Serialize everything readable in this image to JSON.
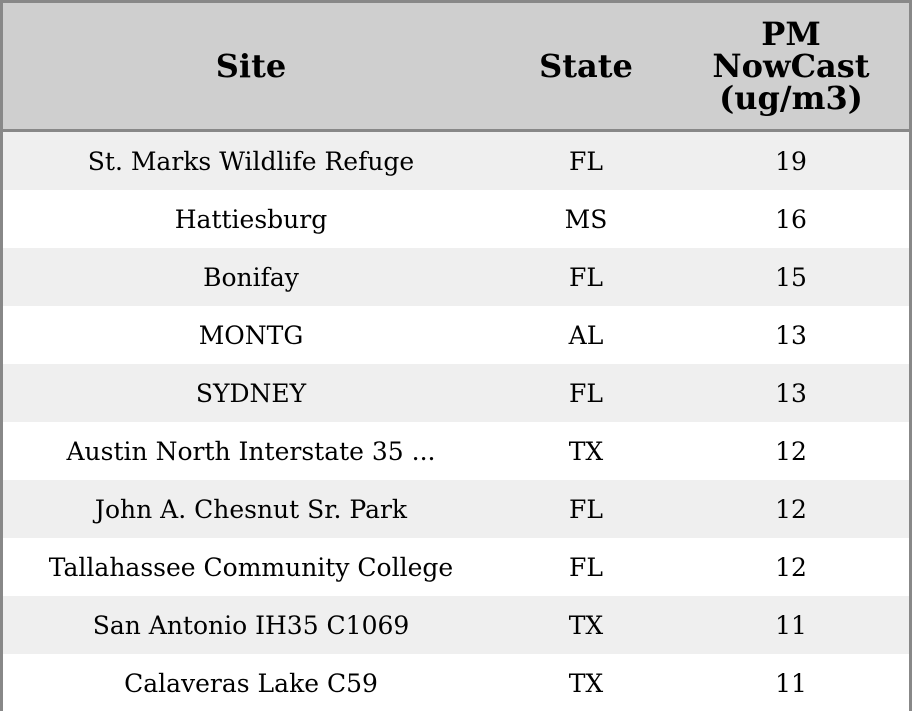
{
  "table": {
    "headers": {
      "site": "Site",
      "state": "State",
      "pm_line1": "PM",
      "pm_line2": "NowCast",
      "pm_line3": "(ug/m3)"
    },
    "rows": [
      {
        "site": "St. Marks Wildlife Refuge",
        "state": "FL",
        "pm": "19"
      },
      {
        "site": "Hattiesburg",
        "state": "MS",
        "pm": "16"
      },
      {
        "site": "Bonifay",
        "state": "FL",
        "pm": "15"
      },
      {
        "site": "MONTG",
        "state": "AL",
        "pm": "13"
      },
      {
        "site": "SYDNEY",
        "state": "FL",
        "pm": "13"
      },
      {
        "site": "Austin North Interstate 35 ...",
        "state": "TX",
        "pm": "12"
      },
      {
        "site": "John A. Chesnut Sr. Park",
        "state": "FL",
        "pm": "12"
      },
      {
        "site": "Tallahassee Community College",
        "state": "FL",
        "pm": "12"
      },
      {
        "site": "San Antonio IH35 C1069",
        "state": "TX",
        "pm": "11"
      },
      {
        "site": "Calaveras Lake C59",
        "state": "TX",
        "pm": "11"
      }
    ]
  },
  "colors": {
    "header_bg": "#cfcfcf",
    "odd_row_bg": "#efefef",
    "even_row_bg": "#ffffff",
    "border": "#888888"
  }
}
